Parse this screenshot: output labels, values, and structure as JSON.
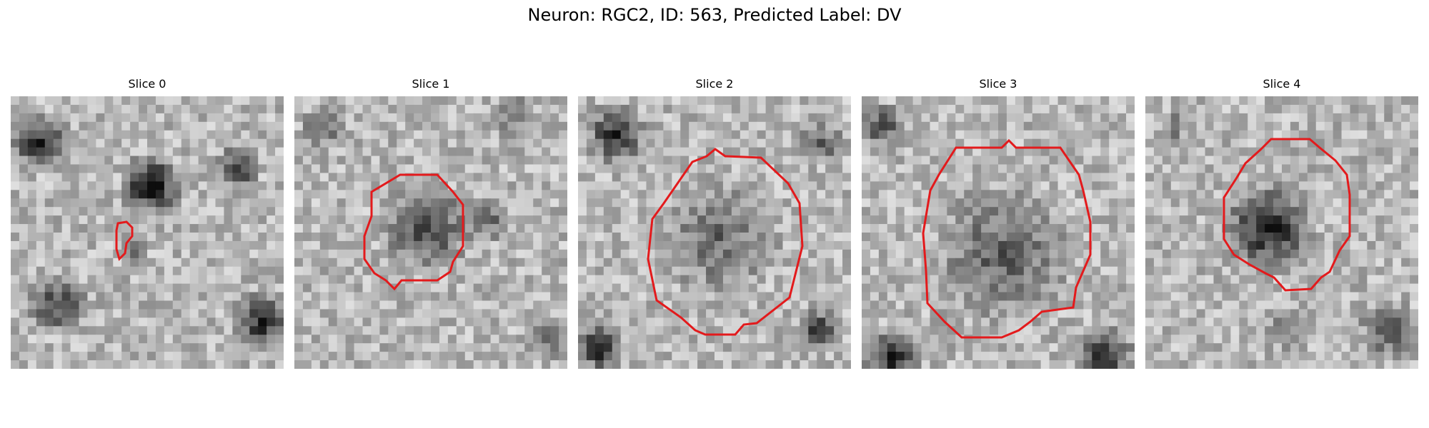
{
  "figure": {
    "title": "Neuron: RGC2, ID: 563, Predicted Label: DV",
    "contour_color": "#e31a1c",
    "colormap": "gray"
  },
  "slices": [
    {
      "label": "Slice 0"
    },
    {
      "label": "Slice 1"
    },
    {
      "label": "Slice 2"
    },
    {
      "label": "Slice 3"
    },
    {
      "label": "Slice 4"
    }
  ]
}
